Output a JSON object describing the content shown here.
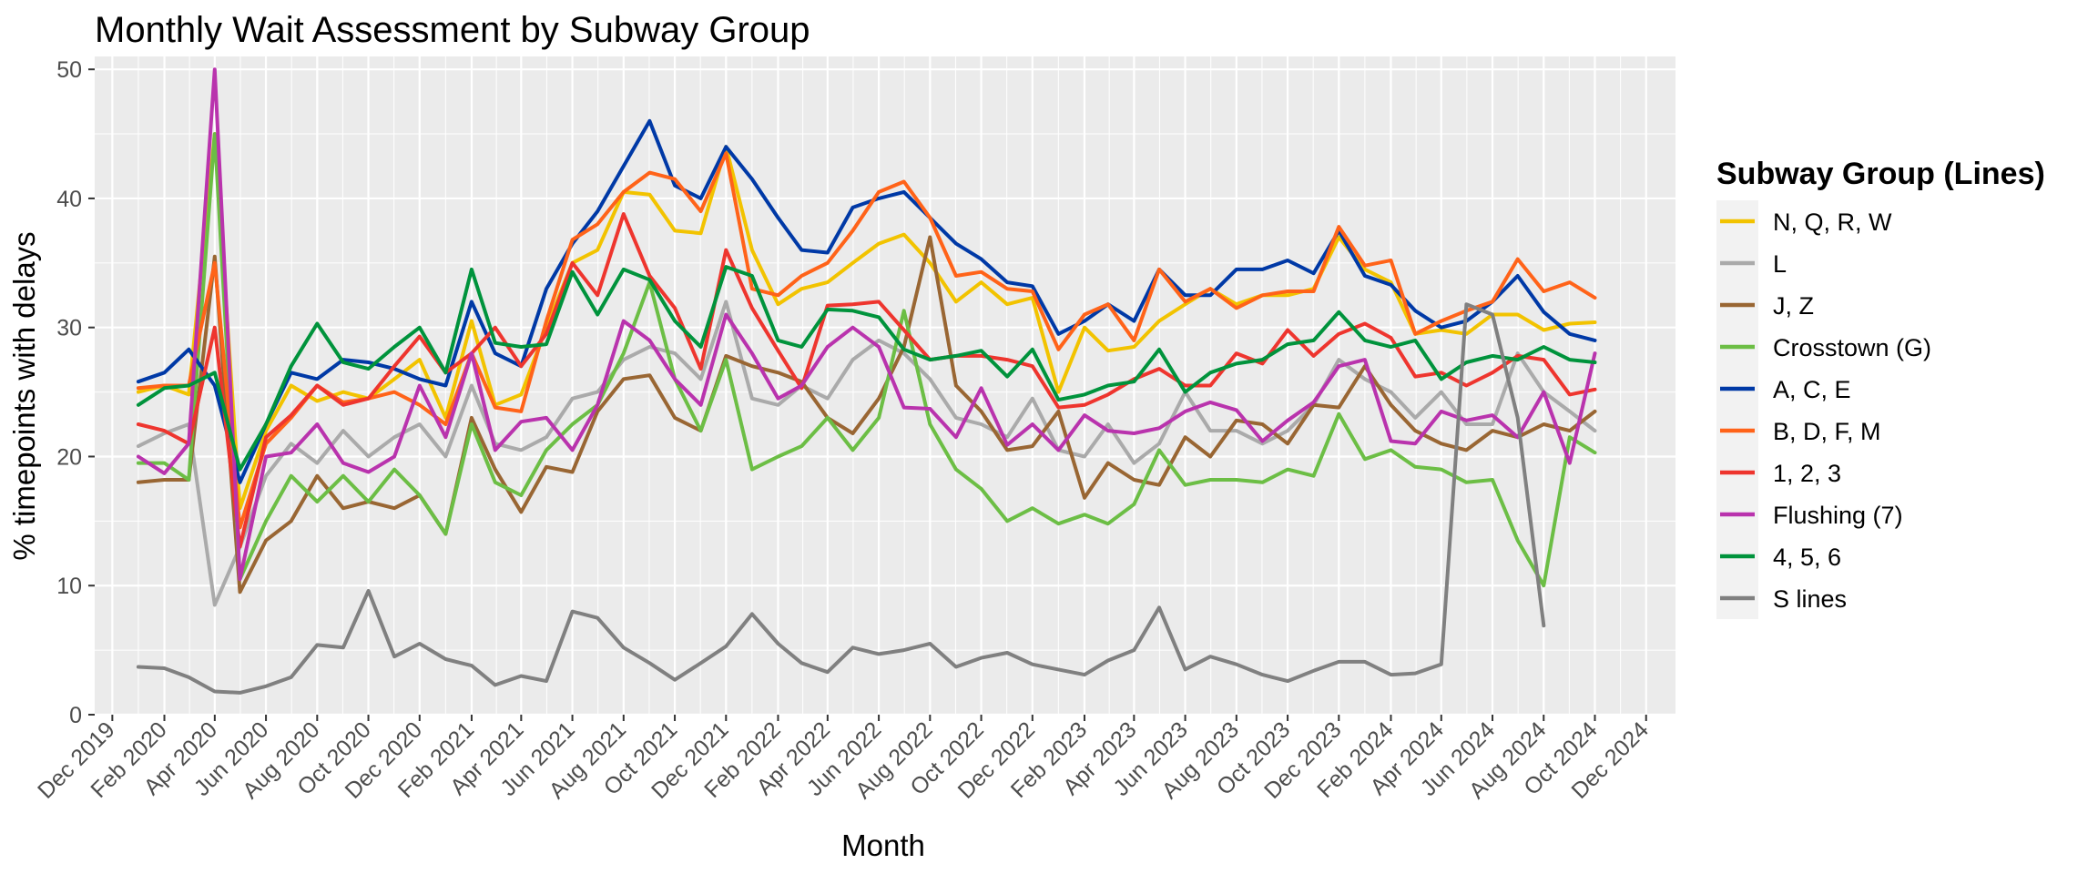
{
  "chart_data": {
    "type": "line",
    "title": "Monthly Wait Assessment by Subway Group",
    "xlabel": "Month",
    "ylabel": "% timepoints with delays",
    "ylim": [
      0,
      51
    ],
    "yticks": [
      0,
      10,
      20,
      30,
      40,
      50
    ],
    "xlim": [
      "2019-11-10",
      "2025-01-05"
    ],
    "xticks": [
      "Dec 2019",
      "Feb 2020",
      "Apr 2020",
      "Jun 2020",
      "Aug 2020",
      "Oct 2020",
      "Dec 2020",
      "Feb 2021",
      "Apr 2021",
      "Jun 2021",
      "Aug 2021",
      "Oct 2021",
      "Dec 2021",
      "Feb 2022",
      "Apr 2022",
      "Jun 2022",
      "Aug 2022",
      "Oct 2022",
      "Dec 2022",
      "Feb 2023",
      "Apr 2023",
      "Jun 2023",
      "Aug 2023",
      "Oct 2023",
      "Dec 2023",
      "Feb 2024",
      "Apr 2024",
      "Jun 2024",
      "Aug 2024",
      "Oct 2024",
      "Dec 2024"
    ],
    "grid": true,
    "legend": {
      "title": "Subway Group (Lines)",
      "position": "right"
    },
    "x": [
      "2020-01",
      "2020-02",
      "2020-03",
      "2020-04",
      "2020-05",
      "2020-06",
      "2020-07",
      "2020-08",
      "2020-09",
      "2020-10",
      "2020-11",
      "2020-12",
      "2021-01",
      "2021-02",
      "2021-03",
      "2021-04",
      "2021-05",
      "2021-06",
      "2021-07",
      "2021-08",
      "2021-09",
      "2021-10",
      "2021-11",
      "2021-12",
      "2022-01",
      "2022-02",
      "2022-03",
      "2022-04",
      "2022-05",
      "2022-06",
      "2022-07",
      "2022-08",
      "2022-09",
      "2022-10",
      "2022-11",
      "2022-12",
      "2023-01",
      "2023-02",
      "2023-03",
      "2023-04",
      "2023-05",
      "2023-06",
      "2023-07",
      "2023-08",
      "2023-09",
      "2023-10",
      "2023-11",
      "2023-12",
      "2024-01",
      "2024-02",
      "2024-03",
      "2024-04",
      "2024-05",
      "2024-06",
      "2024-07",
      "2024-08",
      "2024-09",
      "2024-10"
    ],
    "series": [
      {
        "name": "N, Q, R, W",
        "color": "#F2C300",
        "values": [
          25.0,
          25.5,
          24.8,
          45.0,
          16.0,
          22.0,
          25.5,
          24.3,
          25.0,
          24.5,
          26.0,
          27.5,
          23.0,
          30.5,
          24.0,
          24.8,
          30.0,
          35.0,
          36.0,
          40.5,
          40.3,
          37.5,
          37.3,
          44.0,
          36.0,
          31.8,
          33.0,
          33.5,
          35.0,
          36.5,
          37.2,
          35.0,
          32.0,
          33.5,
          31.8,
          32.3,
          25.0,
          30.0,
          28.2,
          28.5,
          30.5,
          31.8,
          33.0,
          31.8,
          32.5,
          32.5,
          33.0,
          37.0,
          34.5,
          33.5,
          29.5,
          29.8,
          29.5,
          31.0,
          31.0,
          29.8,
          30.3,
          30.4
        ]
      },
      {
        "name": "L",
        "color": "#AAAAAA",
        "values": [
          20.8,
          21.8,
          22.5,
          8.5,
          13.0,
          18.5,
          21.0,
          19.5,
          22.0,
          20.0,
          21.5,
          22.5,
          20.0,
          25.5,
          21.0,
          20.5,
          21.5,
          24.5,
          25.0,
          27.5,
          28.5,
          28.0,
          26.0,
          32.0,
          24.5,
          24.0,
          25.5,
          24.5,
          27.5,
          29.0,
          28.0,
          26.0,
          23.0,
          22.5,
          21.5,
          24.5,
          20.5,
          20.0,
          22.5,
          19.5,
          21.0,
          25.0,
          22.0,
          22.0,
          21.0,
          22.0,
          24.0,
          27.5,
          26.0,
          25.0,
          23.0,
          25.0,
          22.5,
          22.5,
          28.0,
          25.0,
          23.5,
          22.0
        ]
      },
      {
        "name": "J, Z",
        "color": "#996633",
        "values": [
          18.0,
          18.2,
          18.2,
          35.5,
          9.5,
          13.5,
          15.0,
          18.5,
          16.0,
          16.5,
          16.0,
          17.0,
          14.0,
          23.0,
          19.0,
          15.7,
          19.2,
          18.8,
          23.5,
          26.0,
          26.3,
          23.0,
          22.0,
          27.8,
          27.0,
          26.5,
          25.8,
          23.0,
          21.8,
          24.5,
          28.5,
          37.0,
          25.5,
          23.5,
          20.5,
          20.8,
          23.5,
          16.8,
          19.5,
          18.2,
          17.8,
          21.5,
          20.0,
          22.8,
          22.5,
          21.0,
          24.0,
          23.8,
          27.0,
          24.0,
          22.0,
          21.0,
          20.5,
          22.0,
          21.5,
          22.5,
          22.0,
          23.5
        ]
      },
      {
        "name": "Crosstown (G)",
        "color": "#6CBE45",
        "values": [
          19.5,
          19.5,
          18.2,
          45.0,
          10.5,
          15.0,
          18.5,
          16.5,
          18.5,
          16.5,
          19.0,
          17.0,
          14.0,
          22.5,
          18.0,
          17.0,
          20.5,
          22.5,
          24.0,
          28.0,
          33.5,
          26.0,
          22.0,
          27.5,
          19.0,
          20.0,
          20.8,
          23.0,
          20.5,
          23.0,
          31.3,
          22.5,
          19.0,
          17.5,
          15.0,
          16.0,
          14.8,
          15.5,
          14.8,
          16.3,
          20.5,
          17.8,
          18.2,
          18.2,
          18.0,
          19.0,
          18.5,
          23.3,
          19.8,
          20.5,
          19.2,
          19.0,
          18.0,
          18.2,
          13.5,
          10.0,
          21.5,
          20.3
        ]
      },
      {
        "name": "A, C, E",
        "color": "#0039A6",
        "values": [
          25.8,
          26.5,
          28.3,
          25.5,
          18.0,
          22.5,
          26.5,
          26.0,
          27.5,
          27.3,
          26.8,
          26.0,
          25.5,
          32.0,
          28.0,
          27.0,
          33.0,
          36.5,
          39.0,
          42.5,
          46.0,
          41.0,
          40.0,
          44.0,
          41.5,
          38.5,
          36.0,
          35.8,
          39.3,
          40.0,
          40.5,
          38.5,
          36.5,
          35.3,
          33.5,
          33.2,
          29.5,
          30.5,
          31.8,
          30.5,
          34.5,
          32.5,
          32.5,
          34.5,
          34.5,
          35.2,
          34.2,
          37.5,
          34.0,
          33.3,
          31.3,
          30.0,
          30.5,
          32.0,
          34.0,
          31.2,
          29.5,
          29.0
        ]
      },
      {
        "name": "B, D, F, M",
        "color": "#FF6319",
        "values": [
          25.3,
          25.5,
          25.5,
          35.0,
          14.5,
          21.0,
          23.0,
          25.5,
          24.2,
          24.5,
          25.0,
          24.0,
          22.5,
          28.0,
          23.8,
          23.5,
          30.5,
          36.8,
          38.0,
          40.5,
          42.0,
          41.5,
          39.0,
          43.5,
          33.0,
          32.5,
          34.0,
          35.0,
          37.5,
          40.5,
          41.3,
          38.5,
          34.0,
          34.3,
          33.0,
          32.8,
          28.3,
          31.0,
          31.8,
          29.0,
          34.5,
          32.0,
          33.0,
          31.5,
          32.5,
          32.8,
          32.8,
          37.8,
          34.8,
          35.2,
          29.5,
          30.5,
          31.3,
          32.0,
          35.3,
          32.8,
          33.5,
          32.3
        ]
      },
      {
        "name": "1, 2, 3",
        "color": "#EE352E",
        "values": [
          22.5,
          22.0,
          21.0,
          30.0,
          13.0,
          21.5,
          23.2,
          25.5,
          24.0,
          24.5,
          27.0,
          29.3,
          26.5,
          28.0,
          30.0,
          27.0,
          29.5,
          35.0,
          32.5,
          38.8,
          34.0,
          31.5,
          26.8,
          36.0,
          31.5,
          28.2,
          25.3,
          31.7,
          31.8,
          32.0,
          29.8,
          27.5,
          27.8,
          27.8,
          27.5,
          27.0,
          23.8,
          24.0,
          24.8,
          26.0,
          26.8,
          25.5,
          25.5,
          28.0,
          27.2,
          29.8,
          27.8,
          29.5,
          30.3,
          29.2,
          26.2,
          26.5,
          25.5,
          26.5,
          27.8,
          27.5,
          24.8,
          25.2
        ]
      },
      {
        "name": "Flushing (7)",
        "color": "#B933AD",
        "values": [
          20.0,
          18.7,
          21.0,
          50.0,
          10.5,
          20.0,
          20.3,
          22.5,
          19.5,
          18.8,
          20.0,
          25.5,
          21.5,
          28.0,
          20.5,
          22.7,
          23.0,
          20.5,
          24.0,
          30.5,
          29.0,
          26.0,
          24.0,
          31.0,
          28.0,
          24.5,
          25.5,
          28.5,
          30.0,
          28.5,
          23.8,
          23.7,
          21.5,
          25.3,
          20.9,
          22.5,
          20.5,
          23.2,
          22.0,
          21.8,
          22.2,
          23.5,
          24.2,
          23.6,
          21.2,
          22.8,
          24.2,
          27.0,
          27.5,
          21.2,
          21.0,
          23.5,
          22.8,
          23.2,
          21.5,
          25.0,
          19.5,
          28.0
        ]
      },
      {
        "name": "4, 5, 6",
        "color": "#00933C",
        "values": [
          24.0,
          25.3,
          25.5,
          26.5,
          19.0,
          22.5,
          27.0,
          30.3,
          27.3,
          26.8,
          28.5,
          30.0,
          26.5,
          34.5,
          28.8,
          28.5,
          28.7,
          34.3,
          31.0,
          34.5,
          33.7,
          30.5,
          28.5,
          34.7,
          34.0,
          29.0,
          28.5,
          31.4,
          31.3,
          30.8,
          28.3,
          27.5,
          27.8,
          28.2,
          26.2,
          28.3,
          24.4,
          24.8,
          25.5,
          25.8,
          28.3,
          25.0,
          26.5,
          27.2,
          27.5,
          28.7,
          29.0,
          31.2,
          29.0,
          28.5,
          29.0,
          26.0,
          27.3,
          27.8,
          27.5,
          28.5,
          27.5,
          27.3
        ]
      },
      {
        "name": "S lines",
        "color": "#808080",
        "values": [
          3.7,
          3.6,
          2.9,
          1.8,
          1.7,
          2.2,
          2.9,
          5.4,
          5.2,
          9.6,
          4.5,
          5.5,
          4.3,
          3.8,
          2.3,
          3.0,
          2.6,
          8.0,
          7.5,
          5.2,
          4.0,
          2.7,
          4.0,
          5.3,
          7.8,
          5.5,
          4.0,
          3.3,
          5.2,
          4.7,
          5.0,
          5.5,
          3.7,
          4.4,
          4.8,
          3.9,
          3.5,
          3.1,
          4.2,
          5.0,
          8.3,
          3.5,
          4.5,
          3.9,
          3.1,
          2.6,
          3.4,
          4.1,
          4.1,
          3.1,
          3.2,
          3.9,
          31.8,
          31.0,
          23.0,
          6.9,
          null,
          null
        ]
      }
    ]
  }
}
